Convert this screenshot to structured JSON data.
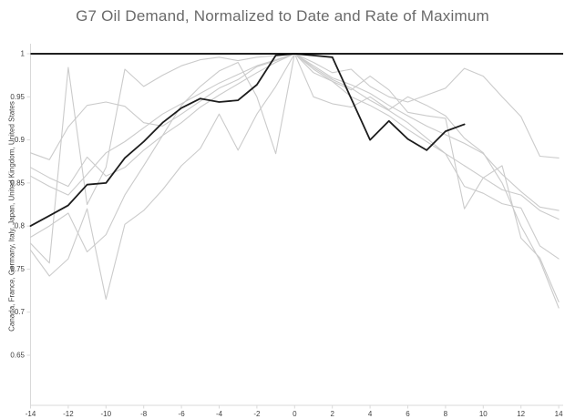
{
  "chart": {
    "title": "G7 Oil Demand, Normalized to Date and Rate of Maximum"
  },
  "chart_data": {
    "type": "line",
    "title": "G7 Oil Demand, Normalized to Date and Rate of Maximum",
    "xlabel": "",
    "ylabel": "Canada, France, Germany, Italy, Japan, United Kingdom, United States",
    "xlim": [
      -14,
      14.4
    ],
    "ylim": [
      0.592,
      1.01
    ],
    "x_ticks": [
      -14,
      -12,
      -10,
      -8,
      -6,
      -4,
      -2,
      0,
      2,
      4,
      6,
      8,
      10,
      12,
      14
    ],
    "y_ticks": [
      1,
      0.95,
      0.9,
      0.85,
      0.8,
      0.75,
      0.7,
      0.65
    ],
    "y_tick_labels": [
      "1",
      "0.95",
      "0.9",
      "0.85",
      "0.8",
      "0.75",
      "0.7",
      "0.65"
    ],
    "grid": false,
    "legend_position": "none",
    "reference_line_y": 1,
    "x": [
      -14,
      -13,
      -12,
      -11,
      -10,
      -9,
      -8,
      -7,
      -6,
      -5,
      -4,
      -3,
      -2,
      -1,
      0,
      1,
      2,
      3,
      4,
      5,
      6,
      7,
      8,
      9,
      10,
      11,
      12,
      13,
      14
    ],
    "series": [
      {
        "name": "gray-line-1",
        "color": "#cbcbcb",
        "width": 1.1,
        "values": [
          0.885,
          0.877,
          0.915,
          0.94,
          0.944,
          0.939,
          0.92,
          0.916,
          0.93,
          0.945,
          0.96,
          0.97,
          0.985,
          0.992,
          1.0,
          0.99,
          0.978,
          0.982,
          0.962,
          0.95,
          0.944,
          0.952,
          0.96,
          0.983,
          0.974,
          0.95,
          0.927,
          0.881,
          0.879
        ]
      },
      {
        "name": "gray-line-2",
        "color": "#cbcbcb",
        "width": 1.1,
        "values": [
          0.78,
          0.757,
          0.984,
          0.825,
          0.868,
          0.982,
          0.962,
          0.975,
          0.986,
          0.993,
          0.996,
          0.992,
          0.996,
          0.998,
          1.0,
          0.978,
          0.968,
          0.958,
          0.974,
          0.958,
          0.932,
          0.928,
          0.925,
          0.82,
          0.856,
          0.842,
          0.836,
          0.818,
          0.808
        ]
      },
      {
        "name": "gray-line-3",
        "color": "#cbcbcb",
        "width": 1.1,
        "values": [
          0.858,
          0.846,
          0.836,
          0.86,
          0.885,
          0.898,
          0.914,
          0.93,
          0.942,
          0.954,
          0.966,
          0.976,
          0.986,
          0.993,
          1.0,
          0.984,
          0.97,
          0.96,
          0.946,
          0.934,
          0.92,
          0.902,
          0.884,
          0.87,
          0.856,
          0.87,
          0.786,
          0.763,
          0.712
        ]
      },
      {
        "name": "gray-line-4",
        "color": "#cbcbcb",
        "width": 1.1,
        "values": [
          0.772,
          0.742,
          0.762,
          0.82,
          0.715,
          0.802,
          0.818,
          0.842,
          0.87,
          0.89,
          0.93,
          0.888,
          0.93,
          0.962,
          1.0,
          0.986,
          0.972,
          0.964,
          0.954,
          0.94,
          0.928,
          0.916,
          0.906,
          0.896,
          0.884,
          0.86,
          0.84,
          0.822,
          0.818
        ]
      },
      {
        "name": "gray-line-5",
        "color": "#cbcbcb",
        "width": 1.1,
        "values": [
          0.868,
          0.856,
          0.846,
          0.88,
          0.858,
          0.868,
          0.888,
          0.905,
          0.92,
          0.938,
          0.952,
          0.965,
          0.978,
          0.99,
          1.0,
          0.982,
          0.968,
          0.95,
          0.94,
          0.928,
          0.912,
          0.898,
          0.884,
          0.846,
          0.838,
          0.826,
          0.821,
          0.777,
          0.762
        ]
      },
      {
        "name": "gray-line-6",
        "color": "#cbcbcb",
        "width": 1.1,
        "values": [
          0.787,
          0.8,
          0.815,
          0.77,
          0.79,
          0.836,
          0.87,
          0.905,
          0.94,
          0.962,
          0.98,
          0.99,
          0.95,
          0.884,
          1.0,
          0.95,
          0.942,
          0.938,
          0.95,
          0.935,
          0.95,
          0.94,
          0.928,
          0.902,
          0.885,
          0.85,
          0.8,
          0.76,
          0.705
        ]
      },
      {
        "name": "black-line",
        "color": "#1c1c1c",
        "width": 1.8,
        "values": [
          0.8,
          0.812,
          0.824,
          0.848,
          0.85,
          0.879,
          0.898,
          0.92,
          0.937,
          0.948,
          0.944,
          0.946,
          0.964,
          0.998,
          1.0,
          0.998,
          0.996,
          0.948,
          0.9,
          0.922,
          0.901,
          0.888,
          0.91,
          0.918
        ]
      }
    ],
    "colors": {
      "axis": "#d9d9d9",
      "tick_label": "#404040",
      "title": "#6a6a6a",
      "reference_line": "#000000",
      "gray_series": "#cbcbcb",
      "highlight_series": "#1c1c1c"
    }
  }
}
